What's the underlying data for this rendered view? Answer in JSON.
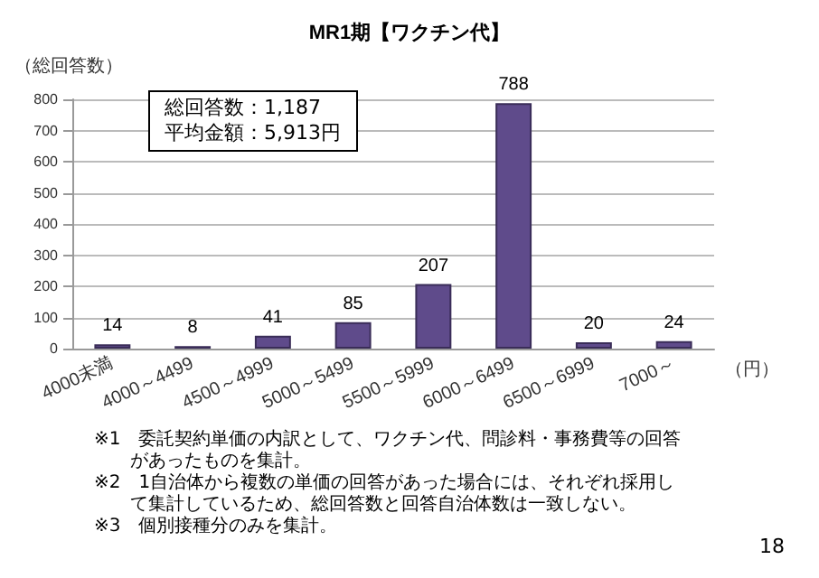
{
  "chart_data": {
    "type": "bar",
    "title": "MR1期【ワクチン代】",
    "ylabel": "（総回答数）",
    "xlabel": "（円）",
    "categories": [
      "4000未満",
      "4000～4499",
      "4500～4999",
      "5000～5499",
      "5500～5999",
      "6000～6499",
      "6500～6999",
      "7000～"
    ],
    "values": [
      14,
      8,
      41,
      85,
      207,
      788,
      20,
      24
    ],
    "color": "#5f4b8b",
    "ylim": [
      0,
      800
    ],
    "yticks": [
      0,
      100,
      200,
      300,
      400,
      500,
      600,
      700,
      800
    ],
    "grid": "y",
    "data_labels": true,
    "annotations": [
      "総回答数：1,187\n平均金額：5,913円",
      "※1　委託契約単価の内訳として、ワクチン代、問診料・事務費等の回答があったものを集計。",
      "※2　1自治体から複数の単価の回答があった場合には、それぞれ採用して集計しているため、総回答数と回答自治体数は一致しない。",
      "※3　個別接種分のみを集計。",
      "18"
    ]
  }
}
